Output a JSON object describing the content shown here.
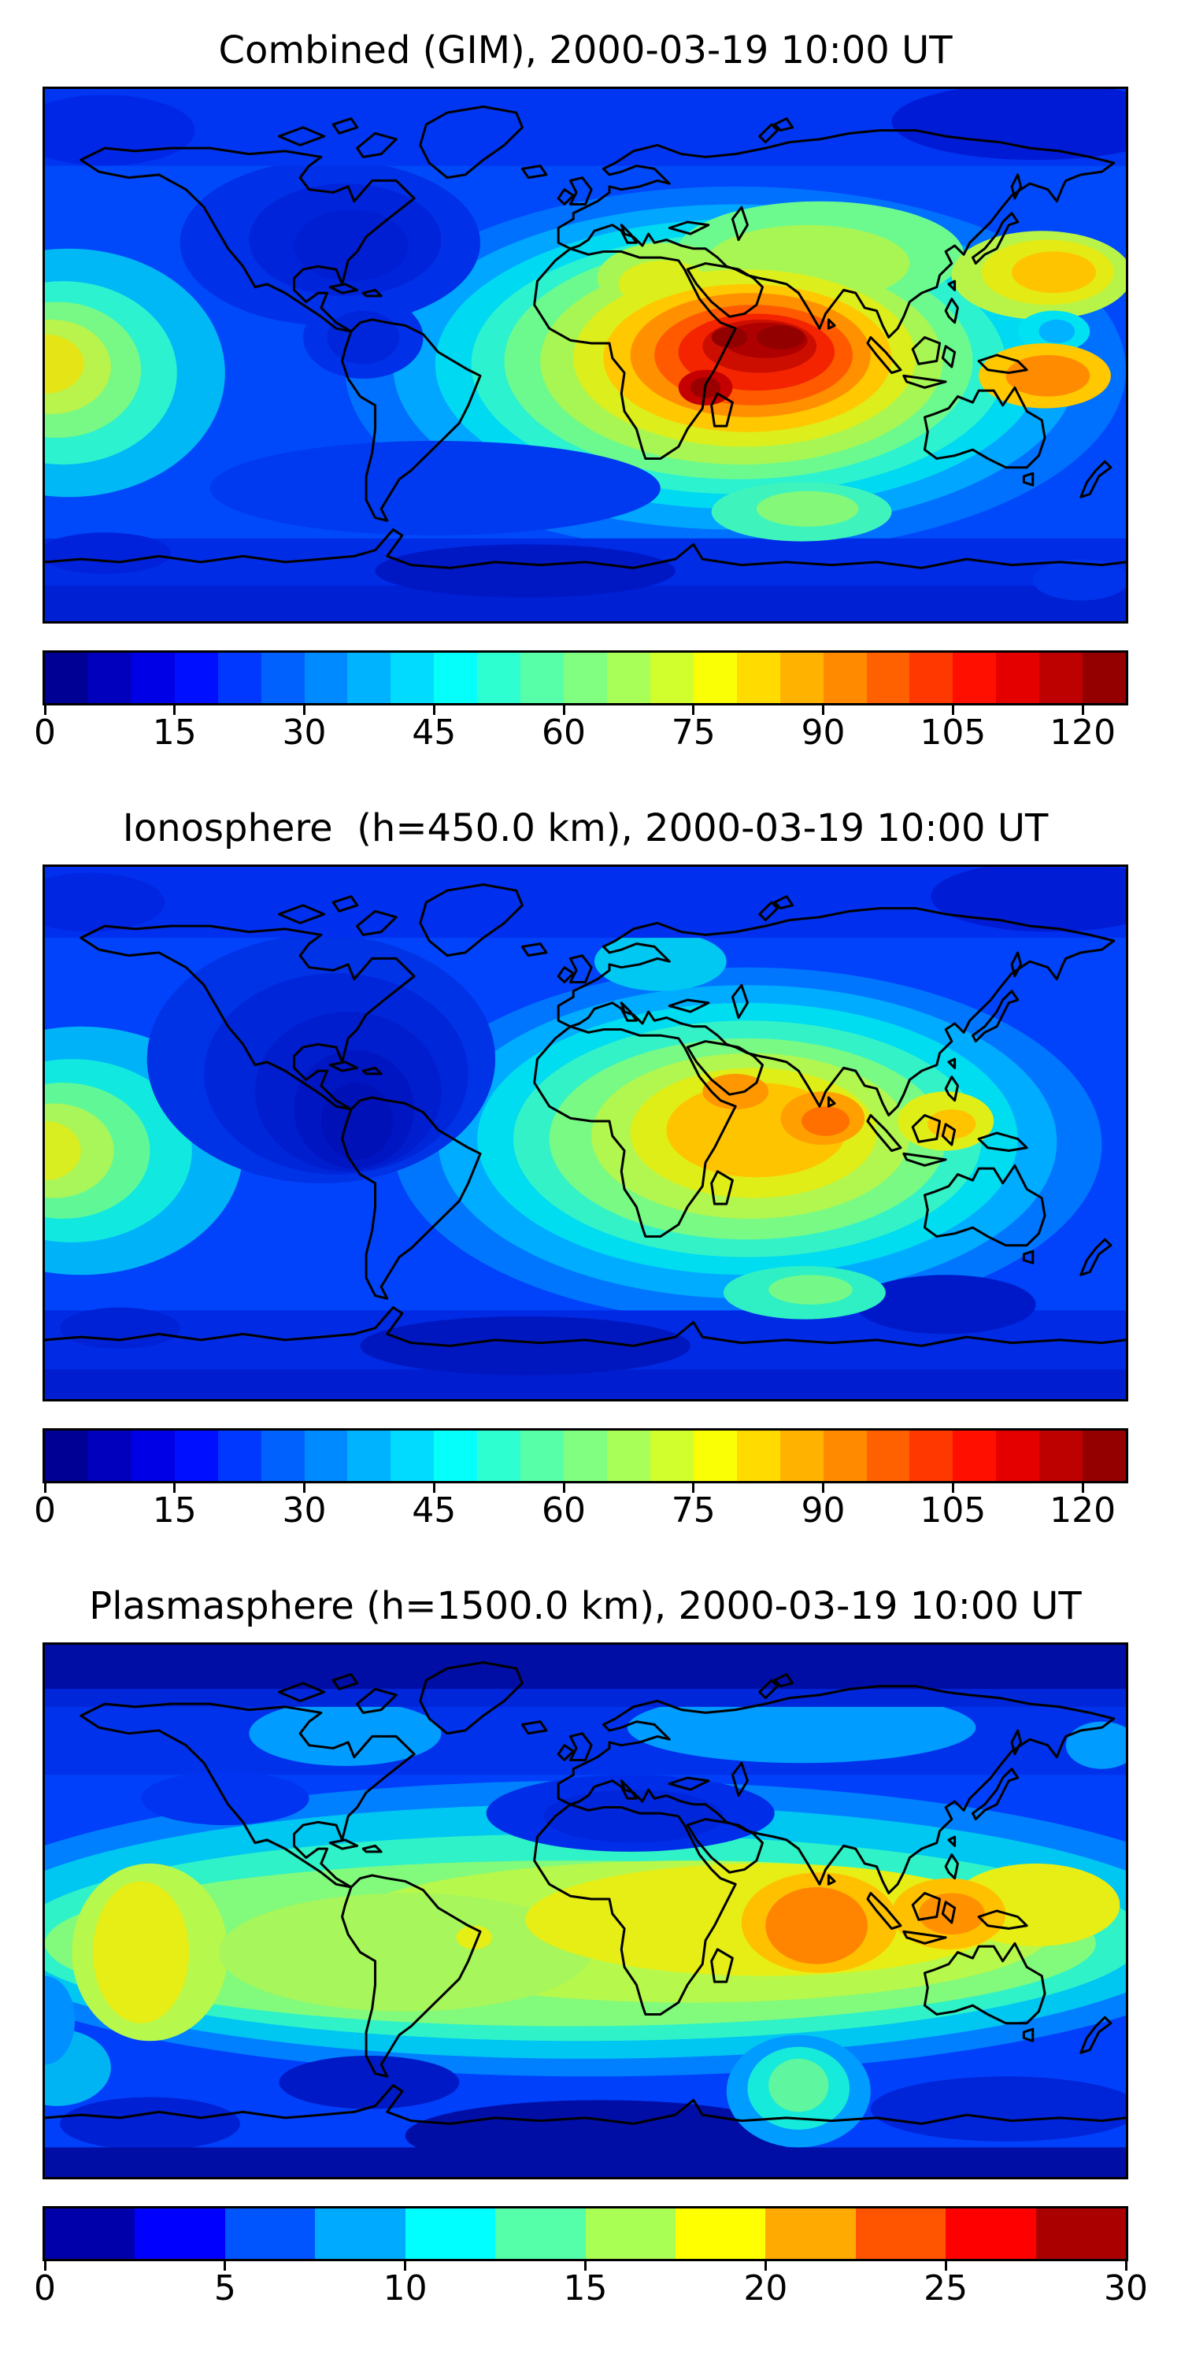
{
  "figure_background": "#ffffff",
  "coastline_color": "#000000",
  "colormap": "jet",
  "panels": [
    {
      "id": "combined",
      "title": "Combined (GIM), 2000-03-19 10:00 UT",
      "colorbar": {
        "vmin": 0,
        "vmax": 125,
        "segments": 25,
        "ticks": [
          "0",
          "15",
          "30",
          "45",
          "60",
          "75",
          "90",
          "105",
          "120"
        ],
        "tick_values": [
          0,
          15,
          30,
          45,
          60,
          75,
          90,
          105,
          120
        ]
      }
    },
    {
      "id": "ionosphere",
      "title": "Ionosphere  (h=450.0 km), 2000-03-19 10:00 UT",
      "colorbar": {
        "vmin": 0,
        "vmax": 125,
        "segments": 25,
        "ticks": [
          "0",
          "15",
          "30",
          "45",
          "60",
          "75",
          "90",
          "105",
          "120"
        ],
        "tick_values": [
          0,
          15,
          30,
          45,
          60,
          75,
          90,
          105,
          120
        ]
      }
    },
    {
      "id": "plasmasphere",
      "title": "Plasmasphere (h=1500.0 km), 2000-03-19 10:00 UT",
      "colorbar": {
        "vmin": 0,
        "vmax": 30,
        "segments": 12,
        "ticks": [
          "0",
          "5",
          "10",
          "15",
          "20",
          "25",
          "30"
        ],
        "tick_values": [
          0,
          5,
          10,
          15,
          20,
          25,
          30
        ]
      }
    }
  ],
  "chart_data": [
    {
      "type": "heatmap",
      "subtype": "filled-contour world map with coastlines",
      "title": "Combined (GIM), 2000-03-19 10:00 UT",
      "projection": "equirectangular, lon -180..180, lat -90..90, no axis ticks",
      "colormap": "jet",
      "contour_levels": {
        "min": 0,
        "max": 125,
        "step": 5
      },
      "colorbar_ticks": [
        0,
        15,
        30,
        45,
        60,
        75,
        90,
        105,
        120
      ],
      "value_range_estimate": [
        8,
        125
      ],
      "features": [
        {
          "label": "primary equatorial maximum",
          "lon_deg": 60,
          "lat_deg": 10,
          "approx_value": 125,
          "note": "dark-red core spanning NE Africa, Arabia, India, SE Asia"
        },
        {
          "label": "secondary maximum core",
          "lon_deg": 40,
          "lat_deg": -11,
          "approx_value": 120,
          "note": "over East Africa south of equator"
        },
        {
          "label": "western Pacific enhancement",
          "lon_deg": -170,
          "lat_deg": -4,
          "approx_value": 70
        },
        {
          "label": "North Pacific enhancement east of Japan",
          "lon_deg": 152,
          "lat_deg": 28,
          "approx_value": 80
        },
        {
          "label": "minimum over North America",
          "lon_deg": -85,
          "lat_deg": 45,
          "approx_value": 15
        },
        {
          "label": "high-latitude / polar lows",
          "lon_deg": 0,
          "lat_deg": 75,
          "approx_value": 10
        },
        {
          "label": "south Indian Ocean ridge",
          "lon_deg": 72,
          "lat_deg": -52,
          "approx_value": 55
        }
      ]
    },
    {
      "type": "heatmap",
      "subtype": "filled-contour world map with coastlines",
      "title": "Ionosphere  (h=450.0 km), 2000-03-19 10:00 UT",
      "projection": "equirectangular, lon -180..180, lat -90..90, no axis ticks",
      "colormap": "jet",
      "contour_levels": {
        "min": 0,
        "max": 125,
        "step": 5
      },
      "colorbar_ticks": [
        0,
        15,
        30,
        45,
        60,
        75,
        90,
        105,
        120
      ],
      "value_range_estimate": [
        5,
        95
      ],
      "features": [
        {
          "label": "maximum over Arabia",
          "lon_deg": 48,
          "lat_deg": 14,
          "approx_value": 90
        },
        {
          "label": "maximum over southern India / Bay of Bengal",
          "lon_deg": 80,
          "lat_deg": 6,
          "approx_value": 95
        },
        {
          "label": "western Pacific enhancement",
          "lon_deg": -172,
          "lat_deg": -6,
          "approx_value": 55
        },
        {
          "label": "deep minimum over the Americas",
          "lon_deg": -75,
          "lat_deg": 5,
          "approx_value": 8
        },
        {
          "label": "south Indian Ocean pocket",
          "lon_deg": 74,
          "lat_deg": -53,
          "approx_value": 45
        },
        {
          "label": "high-latitude / polar lows",
          "lon_deg": 0,
          "lat_deg": 75,
          "approx_value": 10
        }
      ]
    },
    {
      "type": "heatmap",
      "subtype": "filled-contour world map with coastlines",
      "title": "Plasmasphere (h=1500.0 km), 2000-03-19 10:00 UT",
      "projection": "equirectangular, lon -180..180, lat -90..90, no axis ticks",
      "colormap": "jet",
      "contour_levels": {
        "min": 0,
        "max": 30,
        "step": 2.5
      },
      "colorbar_ticks": [
        0,
        5,
        10,
        15,
        20,
        25,
        30
      ],
      "value_range_estimate": [
        2.5,
        27
      ],
      "features": [
        {
          "label": "maximum over southern India",
          "lon_deg": 77,
          "lat_deg": 5,
          "approx_value": 26
        },
        {
          "label": "secondary maximum near Philippines",
          "lon_deg": 122,
          "lat_deg": 10,
          "approx_value": 24
        },
        {
          "label": "broad equatorial belt",
          "lon_deg": 0,
          "lat_deg": 0,
          "approx_value": 18,
          "note": "yellow-green band 15-22 circling the globe"
        },
        {
          "label": "western Pacific yellow patch",
          "lon_deg": -165,
          "lat_deg": -12,
          "approx_value": 20
        },
        {
          "label": "south Indian Ocean pocket near Antarctica",
          "lon_deg": 71,
          "lat_deg": -60,
          "approx_value": 13
        },
        {
          "label": "polar minima",
          "lon_deg": 0,
          "lat_deg": 85,
          "approx_value": 3
        }
      ]
    }
  ]
}
